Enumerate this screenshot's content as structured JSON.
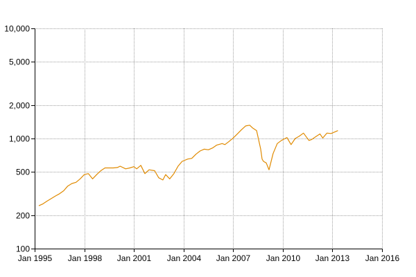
{
  "chart_data": {
    "type": "line",
    "title": "",
    "xlabel": "",
    "ylabel": "",
    "y_scale": "log",
    "grid": true,
    "legend": "none",
    "xlim": [
      "1995-01",
      "2016-01"
    ],
    "ylim": [
      100,
      10000
    ],
    "x_ticks": [
      "Jan 1995",
      "Jan 1998",
      "Jan 2001",
      "Jan 2004",
      "Jan 2007",
      "Jan 2010",
      "Jan 2013",
      "Jan 2016"
    ],
    "y_ticks": [
      {
        "value": 100,
        "label": "100"
      },
      {
        "value": 200,
        "label": "200"
      },
      {
        "value": 500,
        "label": "500"
      },
      {
        "value": 1000,
        "label": "1,000"
      },
      {
        "value": 2000,
        "label": "2,000"
      },
      {
        "value": 5000,
        "label": "5,000"
      },
      {
        "value": 10000,
        "label": "10,000"
      }
    ],
    "colors": {
      "series": "#e08a00",
      "grid": "#a0a0a0",
      "axis": "#000000",
      "background": "#ffffff"
    },
    "series": [
      {
        "x": [
          "1995-04",
          "1995-07",
          "1995-10",
          "1996-01",
          "1996-04",
          "1996-07",
          "1996-10",
          "1997-01",
          "1997-04",
          "1997-07",
          "1997-10",
          "1998-01",
          "1998-04",
          "1998-07",
          "1998-10",
          "1999-01",
          "1999-04",
          "1999-07",
          "1999-10",
          "2000-01",
          "2000-03",
          "2000-07",
          "2000-10",
          "2001-01",
          "2001-03",
          "2001-06",
          "2001-09",
          "2001-12",
          "2002-04",
          "2002-07",
          "2002-10",
          "2002-12",
          "2003-03",
          "2003-06",
          "2003-09",
          "2003-12",
          "2004-04",
          "2004-07",
          "2004-10",
          "2005-01",
          "2005-04",
          "2005-07",
          "2005-10",
          "2006-01",
          "2006-05",
          "2006-07",
          "2006-10",
          "2007-01",
          "2007-04",
          "2007-07",
          "2007-10",
          "2008-01",
          "2008-03",
          "2008-06",
          "2008-09",
          "2008-10",
          "2008-11",
          "2009-01",
          "2009-03",
          "2009-06",
          "2009-09",
          "2009-12",
          "2010-04",
          "2010-07",
          "2010-10",
          "2011-01",
          "2011-04",
          "2011-08",
          "2011-10",
          "2012-01",
          "2012-04",
          "2012-06",
          "2012-09",
          "2012-12",
          "2013-03",
          "2013-05"
        ],
        "values": [
          245,
          255,
          270,
          285,
          300,
          315,
          335,
          370,
          390,
          400,
          430,
          470,
          480,
          430,
          470,
          510,
          540,
          540,
          540,
          545,
          560,
          530,
          540,
          555,
          530,
          570,
          480,
          520,
          510,
          440,
          420,
          470,
          430,
          480,
          560,
          620,
          650,
          660,
          720,
          770,
          800,
          790,
          820,
          870,
          900,
          880,
          940,
          1010,
          1100,
          1200,
          1300,
          1320,
          1250,
          1180,
          800,
          650,
          620,
          600,
          520,
          730,
          900,
          960,
          1020,
          880,
          1000,
          1050,
          1120,
          960,
          980,
          1040,
          1100,
          1010,
          1120,
          1110,
          1150,
          1180
        ]
      }
    ]
  }
}
